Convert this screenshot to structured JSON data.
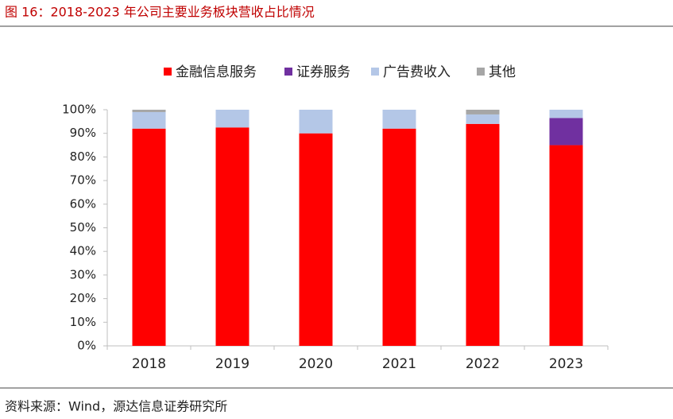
{
  "chart_data": {
    "type": "stacked_bar",
    "title": "图 16：2018-2023 年公司主要业务板块营收占比情况",
    "source": "资料来源：Wind，源达信息证券研究所",
    "categories": [
      "2018",
      "2019",
      "2020",
      "2021",
      "2022",
      "2023"
    ],
    "series": [
      {
        "name": "金融信息服务",
        "color": "#ff0000",
        "values": [
          92,
          92.5,
          90,
          92,
          94,
          85
        ]
      },
      {
        "name": "证券服务",
        "color": "#7030a0",
        "values": [
          0,
          0,
          0,
          0,
          0,
          11.5
        ]
      },
      {
        "name": "广告费收入",
        "color": "#b4c7e7",
        "values": [
          7,
          7.5,
          10,
          8,
          4,
          3.5
        ]
      },
      {
        "name": "其他",
        "color": "#a6a6a6",
        "values": [
          1,
          0,
          0,
          0,
          2,
          0
        ]
      }
    ],
    "ylim": [
      0,
      100
    ],
    "yticks": [
      {
        "value": 0,
        "label": "0%"
      },
      {
        "value": 10,
        "label": "10%"
      },
      {
        "value": 20,
        "label": "20%"
      },
      {
        "value": 30,
        "label": "30%"
      },
      {
        "value": 40,
        "label": "40%"
      },
      {
        "value": 50,
        "label": "50%"
      },
      {
        "value": 60,
        "label": "60%"
      },
      {
        "value": 70,
        "label": "70%"
      },
      {
        "value": 80,
        "label": "80%"
      },
      {
        "value": 90,
        "label": "90%"
      },
      {
        "value": 100,
        "label": "100%"
      }
    ],
    "legend": "top"
  }
}
